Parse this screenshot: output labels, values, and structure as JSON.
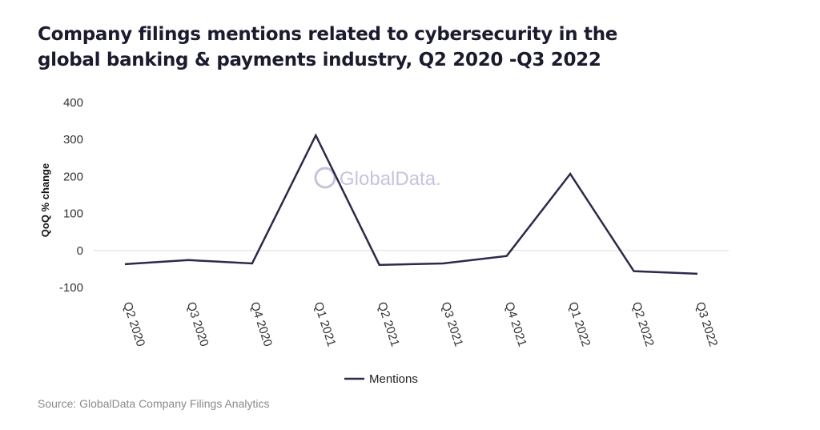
{
  "header": {
    "title_line1": "Company filings mentions related to cybersecurity in the",
    "title_line2": "global banking & payments industry, Q2 2020 -Q3 2022"
  },
  "watermark": "GlobalData.",
  "source": "Source: GlobalData Company Filings Analytics",
  "colors": {
    "line": "#2b2a4c",
    "zero_line": "#dddddd",
    "watermark": "#c9c2dc"
  },
  "chart_data": {
    "type": "line",
    "title": "Company filings mentions related to cybersecurity in the global banking & payments industry, Q2 2020 -Q3 2022",
    "xlabel": "",
    "ylabel": "QoQ % change",
    "ylim": [
      -100,
      400
    ],
    "yticks": [
      400,
      300,
      200,
      100,
      0,
      -100
    ],
    "ytick_labels": [
      "400",
      "300",
      "200",
      "100",
      "0",
      "-100"
    ],
    "grid": false,
    "legend_position": "bottom-center",
    "categories": [
      "Q2 2020",
      "Q3 2020",
      "Q4 2020",
      "Q1 2021",
      "Q2 2021",
      "Q3 2021",
      "Q4 2021",
      "Q1 2022",
      "Q2 2022",
      "Q3 2022"
    ],
    "series": [
      {
        "name": "Mentions",
        "values": [
          -37,
          -26,
          -35,
          311,
          -39,
          -35,
          -15,
          207,
          -56,
          -63
        ]
      }
    ]
  }
}
